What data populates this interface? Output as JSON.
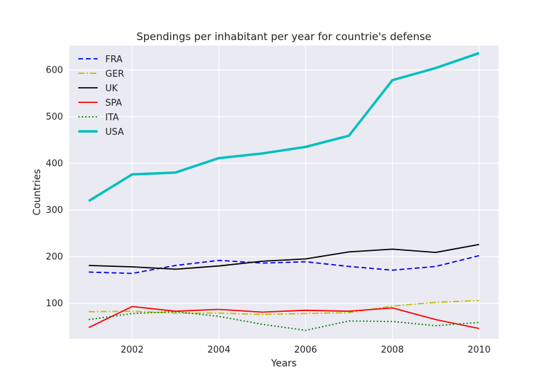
{
  "chart_data": {
    "type": "line",
    "title": "Spendings per inhabitant per year for countrie's defense",
    "xlabel": "Years",
    "ylabel": "Countries",
    "xlim": [
      2000.55,
      2010.45
    ],
    "ylim": [
      24,
      652
    ],
    "xticks": [
      2002,
      2004,
      2006,
      2008,
      2010
    ],
    "yticks": [
      100,
      200,
      300,
      400,
      500,
      600
    ],
    "grid": true,
    "legend_position": "top-left",
    "colors": {
      "background": "#eaeaf2",
      "grid": "#ffffff"
    },
    "x": [
      2001,
      2002,
      2003,
      2004,
      2005,
      2006,
      2007,
      2008,
      2009,
      2010
    ],
    "series": [
      {
        "name": "FRA",
        "color": "#0000ff",
        "style": "dashed",
        "width": 1.8,
        "values": [
          167,
          164,
          181,
          192,
          186,
          189,
          179,
          171,
          179,
          202
        ]
      },
      {
        "name": "GER",
        "color": "#bfbf00",
        "style": "dashdot",
        "width": 1.8,
        "values": [
          82,
          83,
          79,
          79,
          76,
          78,
          80,
          94,
          102,
          106
        ]
      },
      {
        "name": "UK",
        "color": "#000000",
        "style": "solid",
        "width": 1.8,
        "values": [
          181,
          178,
          173,
          180,
          190,
          195,
          210,
          216,
          209,
          226
        ]
      },
      {
        "name": "SPA",
        "color": "#ff0000",
        "style": "solid",
        "width": 1.8,
        "values": [
          48,
          93,
          83,
          87,
          81,
          85,
          83,
          90,
          65,
          46
        ]
      },
      {
        "name": "ITA",
        "color": "#008000",
        "style": "dotted",
        "width": 1.8,
        "values": [
          65,
          78,
          82,
          72,
          55,
          42,
          62,
          61,
          52,
          59
        ]
      },
      {
        "name": "USA",
        "color": "#00bfbf",
        "style": "solid",
        "width": 3.5,
        "values": [
          319,
          376,
          380,
          411,
          421,
          435,
          459,
          578,
          604,
          636
        ]
      }
    ]
  }
}
